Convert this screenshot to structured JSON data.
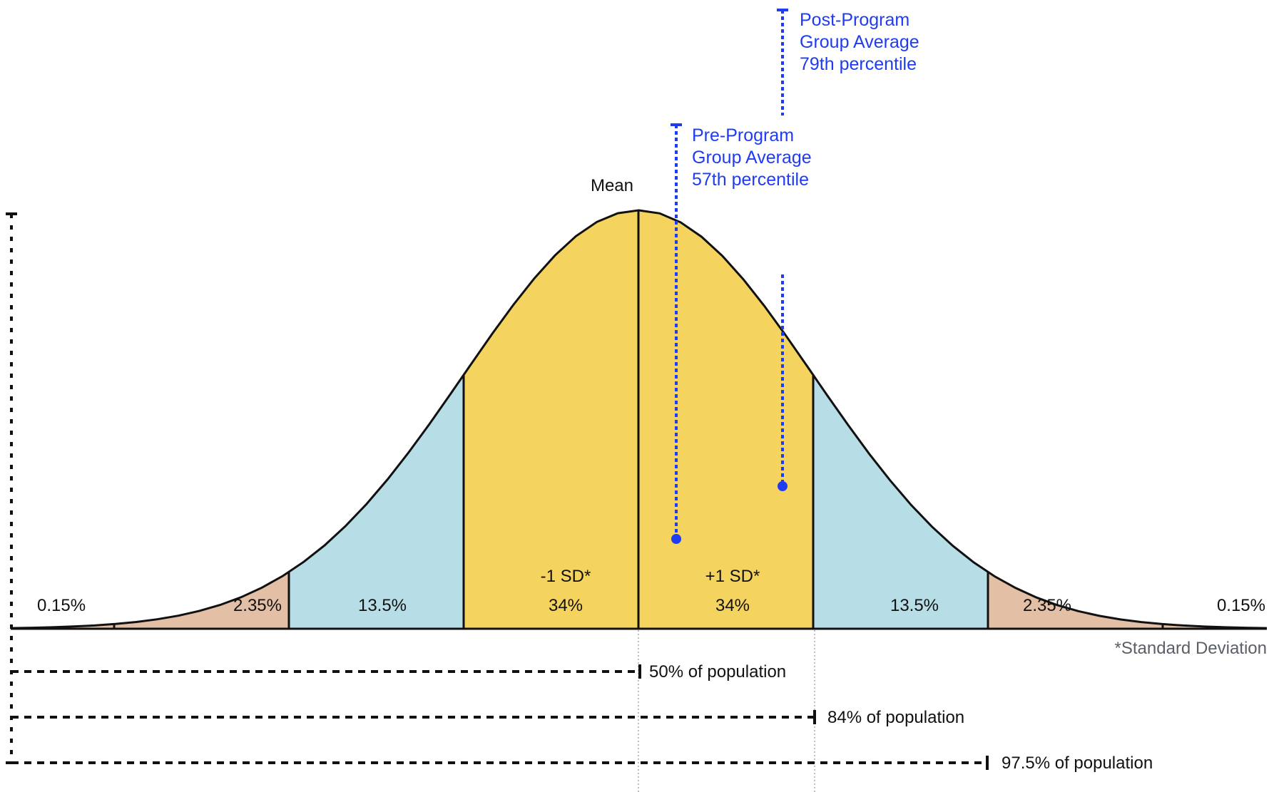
{
  "chart_data": {
    "type": "area",
    "title": "",
    "subtitle": "",
    "xlabel": "",
    "ylabel": "",
    "grid": false,
    "legend": null,
    "distribution": "normal",
    "x_range_sd": [
      -3.6,
      3.6
    ],
    "mean_label": "Mean",
    "regions": [
      {
        "from_sd": -3.6,
        "to_sd": -3,
        "percent": 0.15,
        "label": "0.15%",
        "color": "#e3bfa6"
      },
      {
        "from_sd": -3,
        "to_sd": -2,
        "percent": 2.35,
        "label": "2.35%",
        "color": "#e3bfa6"
      },
      {
        "from_sd": -2,
        "to_sd": -1,
        "percent": 13.5,
        "label": "13.5%",
        "color": "#b7dde6"
      },
      {
        "from_sd": -1,
        "to_sd": 0,
        "percent": 34,
        "label": "34%",
        "sd_label": "-1 SD*",
        "color": "#f4d35e"
      },
      {
        "from_sd": 0,
        "to_sd": 1,
        "percent": 34,
        "label": "34%",
        "sd_label": "+1 SD*",
        "color": "#f4d35e"
      },
      {
        "from_sd": 1,
        "to_sd": 2,
        "percent": 13.5,
        "label": "13.5%",
        "color": "#b7dde6"
      },
      {
        "from_sd": 2,
        "to_sd": 3,
        "percent": 2.35,
        "label": "2.35%",
        "color": "#e3bfa6"
      },
      {
        "from_sd": 3,
        "to_sd": 3.6,
        "percent": 0.15,
        "label": "0.15%",
        "color": "#e3bfa6"
      }
    ],
    "markers": [
      {
        "name": "Pre-Program Group Average",
        "percentile": 57,
        "lines": [
          "Pre-Program",
          "Group Average",
          "57th percentile"
        ],
        "x_sd": 0.21,
        "color": "#1f3cf0"
      },
      {
        "name": "Post-Program Group Average",
        "percentile": 79,
        "lines": [
          "Post-Program",
          "Group Average",
          "79th percentile"
        ],
        "x_sd": 0.82,
        "color": "#1f3cf0"
      }
    ],
    "cumulative_brackets": [
      {
        "to_sd": 0,
        "label": "50% of population"
      },
      {
        "to_sd": 1,
        "label": "84% of population"
      },
      {
        "to_sd": 2,
        "label": "97.5% of population"
      }
    ],
    "footnote": "*Standard Deviation"
  },
  "labels": {
    "mean": "Mean",
    "footnote": "*Standard Deviation",
    "tail_left": "0.15%",
    "tail_right": "0.15%",
    "r_m3": "2.35%",
    "r_m2": "13.5%",
    "r_m1_sd": "-1 SD*",
    "r_m1": "34%",
    "r_p1_sd": "+1 SD*",
    "r_p1": "34%",
    "r_p2": "13.5%",
    "r_p3": "2.35%",
    "pre": [
      "Pre-Program",
      "Group Average",
      "57th percentile"
    ],
    "post": [
      "Post-Program",
      "Group Average",
      "79th percentile"
    ],
    "b50": "50% of population",
    "b84": "84% of population",
    "b975": "97.5% of population"
  }
}
